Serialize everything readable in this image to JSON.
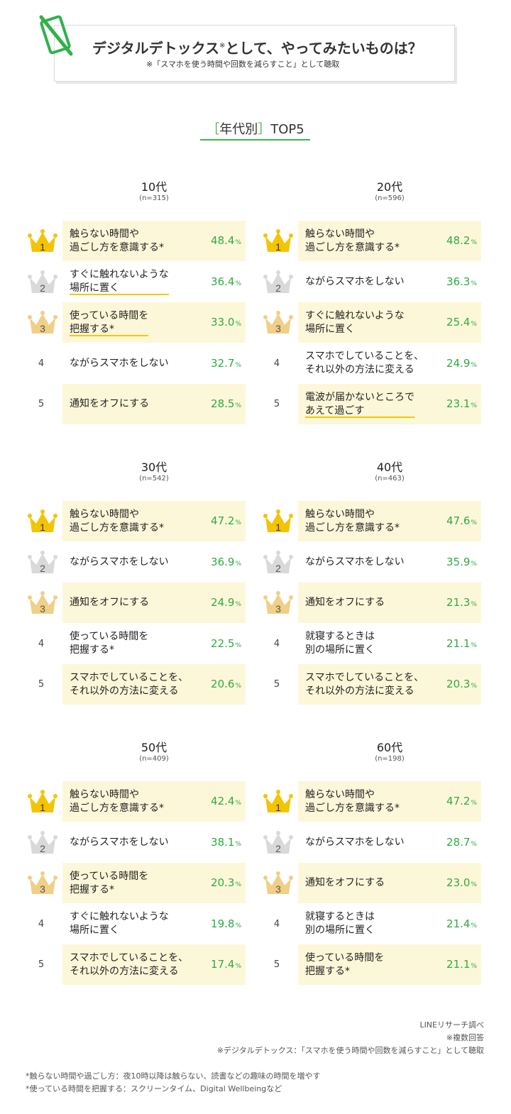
{
  "header": {
    "title": "デジタルデトックス",
    "title_mark": "※",
    "title_rest": "として、やってみたいものは？",
    "subtitle": "※「スマホを使う時間や回数を減らすこと」として聴取"
  },
  "section": {
    "bracket_open": "［",
    "label": "年代別",
    "bracket_close": "］",
    "suffix": "TOP5"
  },
  "colors": {
    "accent_green": "#3cb44a",
    "highlight_bg": "#fdf7d9",
    "gold": "#f2c200",
    "silver": "#cfcfcf",
    "bronze": "#ecc87e"
  },
  "panels": [
    {
      "age": "10代",
      "n": "(n=315)",
      "items": [
        {
          "rank": "1",
          "text": "触らない時間や\n過ごし方を意識する*",
          "value": "48.4",
          "unit": "%",
          "highlight": true,
          "underline": false
        },
        {
          "rank": "2",
          "text": "すぐに触れないような\n場所に置く",
          "value": "36.4",
          "unit": "%",
          "highlight": false,
          "underline": true
        },
        {
          "rank": "3",
          "text": "使っている時間を\n把握する*",
          "value": "33.0",
          "unit": "%",
          "highlight": true,
          "underline": true
        },
        {
          "rank": "4",
          "text": "ながらスマホをしない",
          "value": "32.7",
          "unit": "%",
          "highlight": false,
          "underline": false
        },
        {
          "rank": "5",
          "text": "通知をオフにする",
          "value": "28.5",
          "unit": "%",
          "highlight": true,
          "underline": false
        }
      ]
    },
    {
      "age": "20代",
      "n": "(n=596)",
      "items": [
        {
          "rank": "1",
          "text": "触らない時間や\n過ごし方を意識する*",
          "value": "48.2",
          "unit": "%",
          "highlight": true,
          "underline": false
        },
        {
          "rank": "2",
          "text": "ながらスマホをしない",
          "value": "36.3",
          "unit": "%",
          "highlight": false,
          "underline": false
        },
        {
          "rank": "3",
          "text": "すぐに触れないような\n場所に置く",
          "value": "25.4",
          "unit": "%",
          "highlight": true,
          "underline": false
        },
        {
          "rank": "4",
          "text": "スマホでしていることを、\nそれ以外の方法に変える",
          "value": "24.9",
          "unit": "%",
          "highlight": false,
          "underline": false
        },
        {
          "rank": "5",
          "text": "電波が届かないところで\nあえて過ごす",
          "value": "23.1",
          "unit": "%",
          "highlight": true,
          "underline": true
        }
      ]
    },
    {
      "age": "30代",
      "n": "(n=542)",
      "items": [
        {
          "rank": "1",
          "text": "触らない時間や\n過ごし方を意識する*",
          "value": "47.2",
          "unit": "%",
          "highlight": true,
          "underline": false
        },
        {
          "rank": "2",
          "text": "ながらスマホをしない",
          "value": "36.9",
          "unit": "%",
          "highlight": false,
          "underline": false
        },
        {
          "rank": "3",
          "text": "通知をオフにする",
          "value": "24.9",
          "unit": "%",
          "highlight": true,
          "underline": false
        },
        {
          "rank": "4",
          "text": "使っている時間を\n把握する*",
          "value": "22.5",
          "unit": "%",
          "highlight": false,
          "underline": false
        },
        {
          "rank": "5",
          "text": "スマホでしていることを、\nそれ以外の方法に変える",
          "value": "20.6",
          "unit": "%",
          "highlight": true,
          "underline": false
        }
      ]
    },
    {
      "age": "40代",
      "n": "(n=463)",
      "items": [
        {
          "rank": "1",
          "text": "触らない時間や\n過ごし方を意識する*",
          "value": "47.6",
          "unit": "%",
          "highlight": true,
          "underline": false
        },
        {
          "rank": "2",
          "text": "ながらスマホをしない",
          "value": "35.9",
          "unit": "%",
          "highlight": false,
          "underline": false
        },
        {
          "rank": "3",
          "text": "通知をオフにする",
          "value": "21.3",
          "unit": "%",
          "highlight": true,
          "underline": false
        },
        {
          "rank": "4",
          "text": "就寝するときは\n別の場所に置く",
          "value": "21.1",
          "unit": "%",
          "highlight": false,
          "underline": false
        },
        {
          "rank": "5",
          "text": "スマホでしていることを、\nそれ以外の方法に変える",
          "value": "20.3",
          "unit": "%",
          "highlight": true,
          "underline": false
        }
      ]
    },
    {
      "age": "50代",
      "n": "(n=409)",
      "items": [
        {
          "rank": "1",
          "text": "触らない時間や\n過ごし方を意識する*",
          "value": "42.4",
          "unit": "%",
          "highlight": true,
          "underline": false
        },
        {
          "rank": "2",
          "text": "ながらスマホをしない",
          "value": "38.1",
          "unit": "%",
          "highlight": false,
          "underline": false
        },
        {
          "rank": "3",
          "text": "使っている時間を\n把握する*",
          "value": "20.3",
          "unit": "%",
          "highlight": true,
          "underline": false
        },
        {
          "rank": "4",
          "text": "すぐに触れないような\n場所に置く",
          "value": "19.8",
          "unit": "%",
          "highlight": false,
          "underline": false
        },
        {
          "rank": "5",
          "text": "スマホでしていることを、\nそれ以外の方法に変える",
          "value": "17.4",
          "unit": "%",
          "highlight": true,
          "underline": false
        }
      ]
    },
    {
      "age": "60代",
      "n": "(n=198)",
      "items": [
        {
          "rank": "1",
          "text": "触らない時間や\n過ごし方を意識する*",
          "value": "47.2",
          "unit": "%",
          "highlight": true,
          "underline": false
        },
        {
          "rank": "2",
          "text": "ながらスマホをしない",
          "value": "28.7",
          "unit": "%",
          "highlight": false,
          "underline": false
        },
        {
          "rank": "3",
          "text": "通知をオフにする",
          "value": "23.0",
          "unit": "%",
          "highlight": true,
          "underline": false
        },
        {
          "rank": "4",
          "text": "就寝するときは\n別の場所に置く",
          "value": "21.4",
          "unit": "%",
          "highlight": false,
          "underline": false
        },
        {
          "rank": "5",
          "text": "使っている時間を\n把握する*",
          "value": "21.1",
          "unit": "%",
          "highlight": true,
          "underline": false
        }
      ]
    }
  ],
  "source_notes": [
    "LINEリサーチ調べ",
    "※複数回答",
    "※デジタルデトックス：「スマホを使う時間や回数を減らすこと」として聴取"
  ],
  "footnotes": [
    "*触らない時間や過ごし方：夜10時以降は触らない、読書などの趣味の時間を増やす",
    "*使っている時間を把握する：スクリーンタイム、Digital Wellbeingなど"
  ]
}
